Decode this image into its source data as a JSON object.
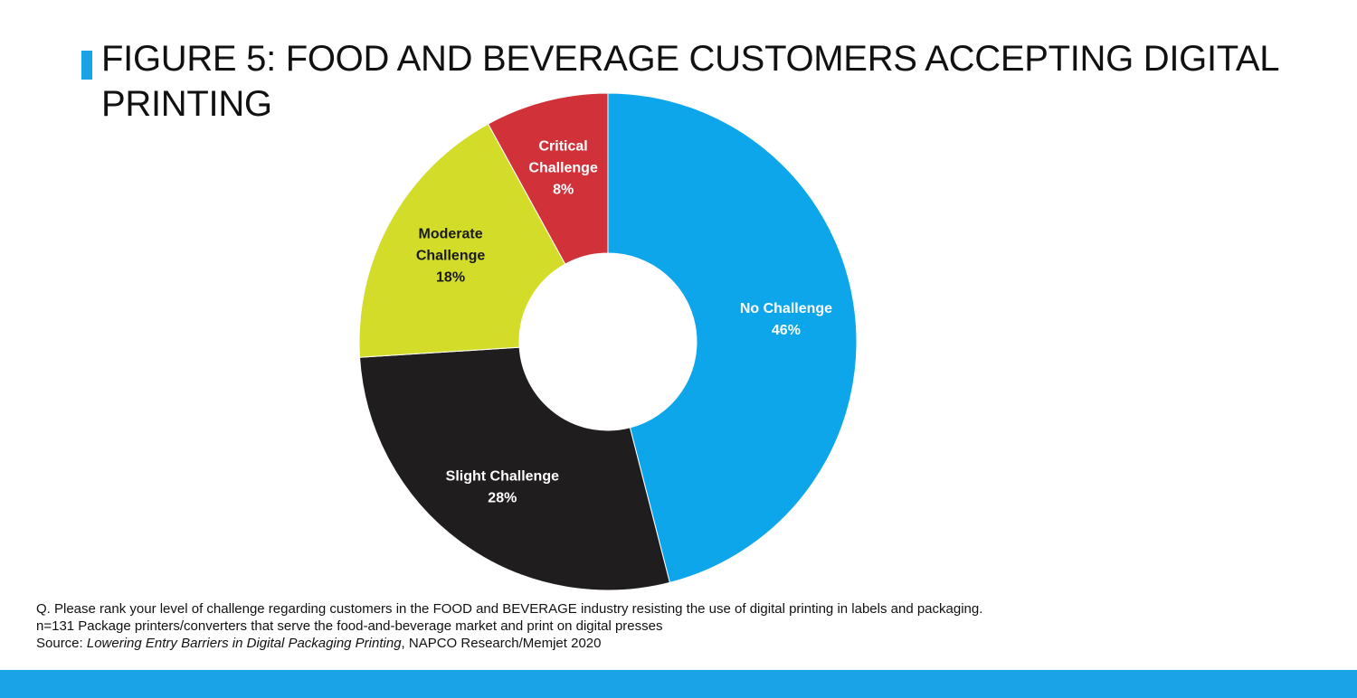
{
  "chart_data": {
    "type": "pie",
    "variant": "donut",
    "title": "FIGURE 5: FOOD AND BEVERAGE CUSTOMERS ACCEPTING DIGITAL PRINTING",
    "slices": [
      {
        "name": "No Challenge",
        "label_lines": [
          "No Challenge"
        ],
        "value": 46,
        "value_label": "46%",
        "color": "#0da6ea",
        "label_color": "#ffffff"
      },
      {
        "name": "Slight Challenge",
        "label_lines": [
          "Slight Challenge"
        ],
        "value": 28,
        "value_label": "28%",
        "color": "#201d1e",
        "label_color": "#ffffff"
      },
      {
        "name": "Moderate Challenge",
        "label_lines": [
          "Moderate",
          "Challenge"
        ],
        "value": 18,
        "value_label": "18%",
        "color": "#d3dd29",
        "label_color": "#1a1a1a"
      },
      {
        "name": "Critical Challenge",
        "label_lines": [
          "Critical",
          "Challenge"
        ],
        "value": 8,
        "value_label": "8%",
        "color": "#d1323a",
        "label_color": "#ffffff"
      }
    ],
    "start": "12 o'clock",
    "direction": "clockwise"
  },
  "notes": {
    "question": "Q. Please rank your level of challenge regarding customers in the FOOD and BEVERAGE industry resisting the use of digital printing in labels and  packaging.",
    "sample": "n=131 Package printers/converters that serve the food-and-beverage market and print on digital presses",
    "source_prefix": "Source: ",
    "source_title": "Lowering Entry Barriers in Digital Packaging Printing",
    "source_suffix": ", NAPCO Research/Memjet 2020"
  },
  "colors": {
    "accent": "#1aa3e6",
    "text": "#111111"
  }
}
